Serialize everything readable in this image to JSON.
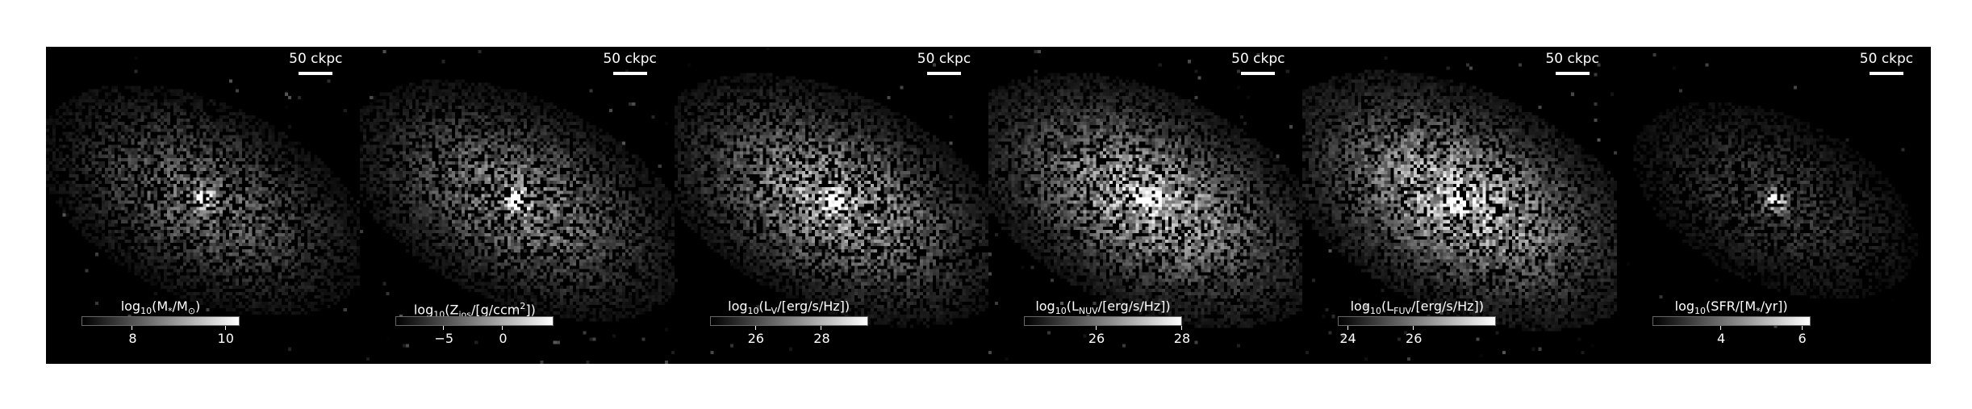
{
  "panels": [
    {
      "scale_label": "50 ckpc",
      "colorbar_label": "log10(M*/M⊙)",
      "label_main": "log",
      "label_sub": "10",
      "label_tail": "(M",
      "label_sub2": "*",
      "label_tail2": "/M",
      "label_sub3": "⊙",
      "label_end": ")",
      "colorbar_range": [
        6.9,
        10.3
      ],
      "ticks": [
        8,
        10
      ],
      "tick_labels": [
        "8",
        "10"
      ],
      "image_profile": {
        "center": [
          0.5,
          0.48
        ],
        "core": 1.0,
        "halo": 0.45,
        "noise": 0.25
      }
    },
    {
      "scale_label": "50 ckpc",
      "colorbar_label": "log10(Zios/[g/ccm²])",
      "label_main": "log",
      "label_sub": "10",
      "label_tail": "(Z",
      "label_sub2": "ios",
      "label_tail2": "/[g/ccm",
      "label_sup": "2",
      "label_end": "])",
      "colorbar_range": [
        -9.1,
        4.3
      ],
      "ticks": [
        -5,
        0
      ],
      "tick_labels": [
        "−5",
        "0"
      ],
      "image_profile": {
        "center": [
          0.5,
          0.48
        ],
        "core": 1.0,
        "halo": 0.55,
        "noise": 0.35
      }
    },
    {
      "scale_label": "50 ckpc",
      "colorbar_label": "log10(LV/[erg/s/Hz])",
      "label_main": "log",
      "label_sub": "10",
      "label_tail": "(L",
      "label_sub2": "V",
      "label_tail2": "/[erg/s/Hz]",
      "label_end": ")",
      "colorbar_range": [
        24.6,
        29.4
      ],
      "ticks": [
        26,
        28
      ],
      "tick_labels": [
        "26",
        "28"
      ],
      "image_profile": {
        "center": [
          0.5,
          0.48
        ],
        "core": 1.0,
        "halo": 0.7,
        "noise": 0.4
      }
    },
    {
      "scale_label": "50 ckpc",
      "colorbar_label": "log10(LNUV/[erg/s/Hz])",
      "label_main": "log",
      "label_sub": "10",
      "label_tail": "(L",
      "label_sub2": "NUV",
      "label_tail2": "/[erg/s/Hz]",
      "label_end": ")",
      "colorbar_range": [
        24.3,
        28.0
      ],
      "ticks": [
        26,
        28
      ],
      "tick_labels": [
        "26",
        "28"
      ],
      "image_profile": {
        "center": [
          0.5,
          0.48
        ],
        "core": 1.0,
        "halo": 0.75,
        "noise": 0.55
      }
    },
    {
      "scale_label": "50 ckpc",
      "colorbar_label": "log10(LFUV/[erg/s/Hz])",
      "label_main": "log",
      "label_sub": "10",
      "label_tail": "(L",
      "label_sub2": "FUV",
      "label_tail2": "/[erg/s/Hz]",
      "label_end": ")",
      "colorbar_range": [
        23.7,
        28.5
      ],
      "ticks": [
        24,
        26
      ],
      "tick_labels": [
        "24",
        "26"
      ],
      "image_profile": {
        "center": [
          0.5,
          0.48
        ],
        "core": 1.0,
        "halo": 0.8,
        "noise": 0.6
      }
    },
    {
      "scale_label": "50 ckpc",
      "colorbar_label": "log10(SFR/[M*/yr])",
      "label_main": "log",
      "label_sub": "10",
      "label_tail": "(SFR/[M",
      "label_sub2": "*",
      "label_tail2": "/yr])",
      "label_end": "",
      "colorbar_range": [
        2.3,
        6.2
      ],
      "ticks": [
        4,
        6
      ],
      "tick_labels": [
        "4",
        "6"
      ],
      "image_profile": {
        "center": [
          0.5,
          0.48
        ],
        "core": 1.0,
        "halo": 0.25,
        "noise": 0.12
      }
    }
  ]
}
